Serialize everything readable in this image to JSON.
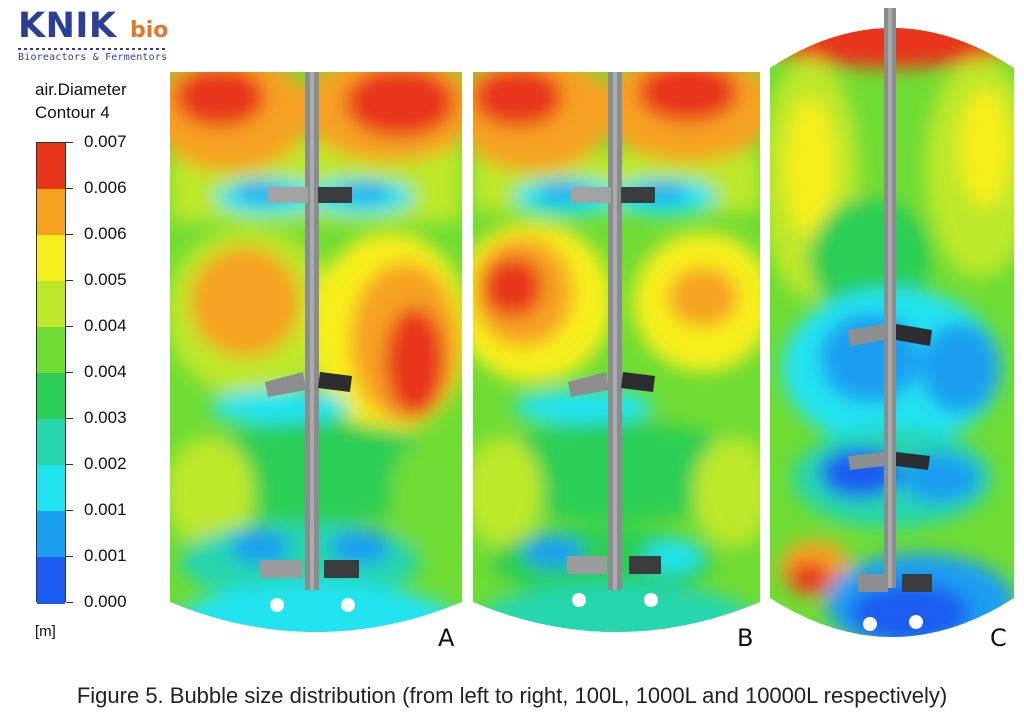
{
  "logo": {
    "brand": "KNIK",
    "suffix": "bio",
    "tagline": "Bioreactors & Fermentors"
  },
  "legend": {
    "title_line1": "air.Diameter",
    "title_line2": "Contour 4",
    "ticks": [
      "0.007",
      "0.006",
      "0.006",
      "0.005",
      "0.004",
      "0.004",
      "0.003",
      "0.002",
      "0.001",
      "0.001",
      "0.000"
    ],
    "unit": "[m]",
    "colors": [
      "#e8361b",
      "#f6a221",
      "#f7ef1d",
      "#bde82a",
      "#6fdc34",
      "#2ccd55",
      "#28d6ae",
      "#22e3f0",
      "#1c9ef1",
      "#1b5bf2"
    ]
  },
  "panels": [
    {
      "label": "A"
    },
    {
      "label": "B"
    },
    {
      "label": "C"
    }
  ],
  "caption": "Figure 5. Bubble size distribution (from left to right, 100L, 1000L and 10000L respectively)"
}
